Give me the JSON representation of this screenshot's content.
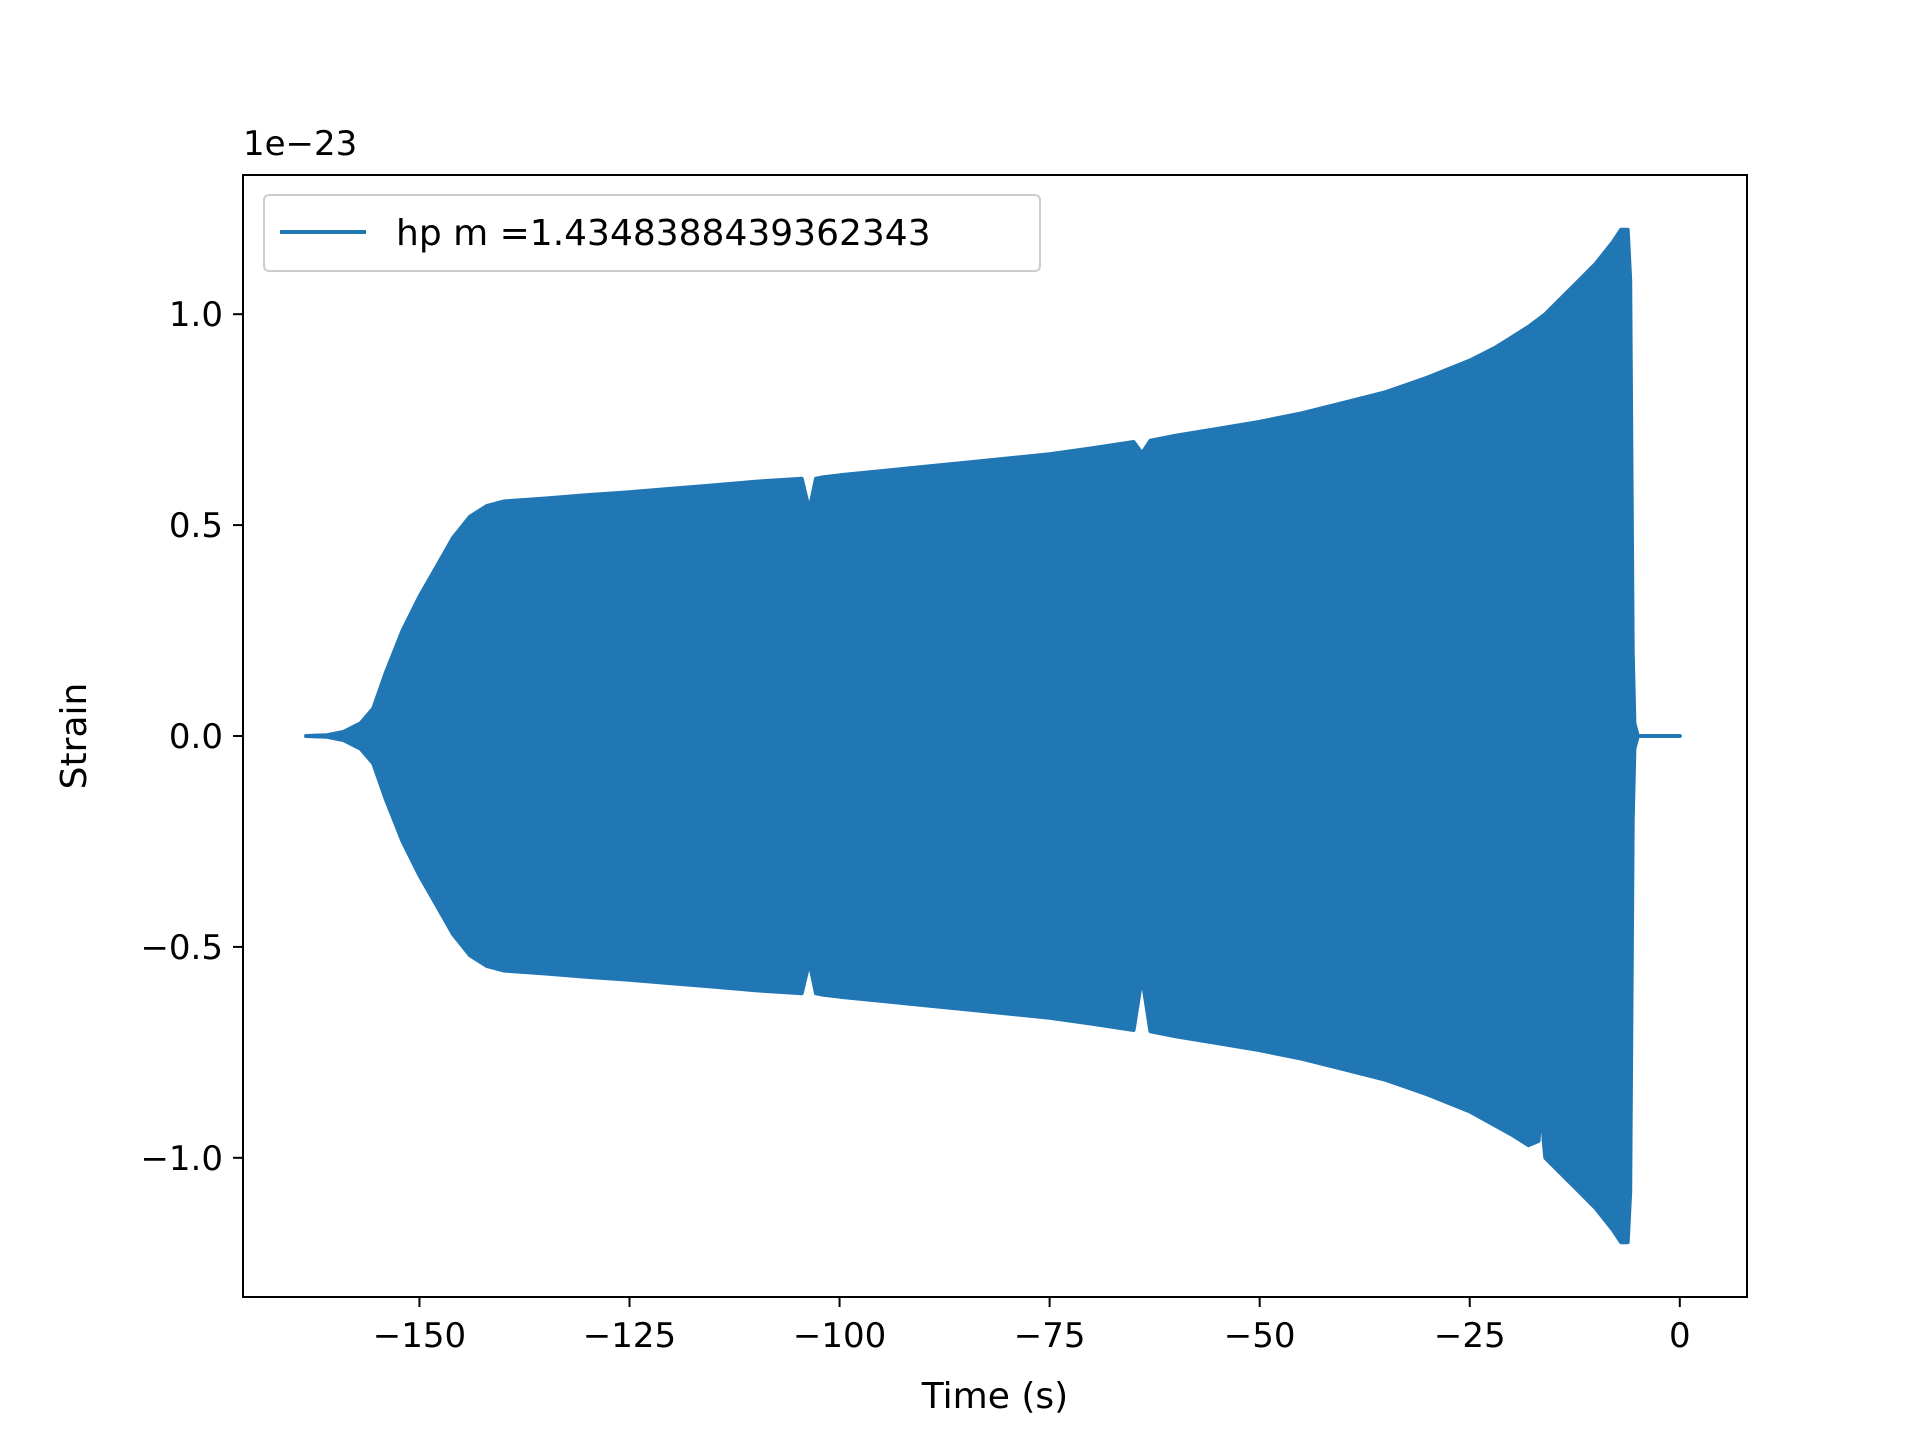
{
  "chart_data": {
    "type": "area",
    "xlabel": "Time (s)",
    "ylabel": "Strain",
    "offset_label": "1e−23",
    "xlim": [
      -171,
      8
    ],
    "ylim": [
      -1.33,
      1.33
    ],
    "xticks": [
      -150,
      -125,
      -100,
      -75,
      -50,
      -25,
      0
    ],
    "xtick_labels": [
      "−150",
      "−125",
      "−100",
      "−75",
      "−50",
      "−25",
      "0"
    ],
    "yticks": [
      -1.0,
      -0.5,
      0.0,
      0.5,
      1.0
    ],
    "ytick_labels": [
      "−1.0",
      "−0.5",
      "0.0",
      "0.5",
      "1.0"
    ],
    "legend_position": "upper-left",
    "grid": false,
    "color": "#2077b4",
    "series": [
      {
        "name": "hp m =1.4348388439362343",
        "upper_envelope": {
          "x": [
            -163.5,
            -161,
            -159,
            -157,
            -155.5,
            -154,
            -152,
            -150,
            -148,
            -146,
            -144,
            -142,
            -140,
            -135,
            -130,
            -125,
            -120,
            -115,
            -110,
            -104.5,
            -103.6,
            -102.8,
            -102,
            -100,
            -95,
            -90,
            -85,
            -80,
            -75,
            -70,
            -65,
            -64,
            -63,
            -60,
            -55,
            -50,
            -45,
            -40,
            -35,
            -30,
            -25,
            -22,
            -20,
            -18,
            -16,
            -14,
            -12,
            -10,
            -8,
            -7,
            -6.2,
            -5.9,
            -5.6,
            -5.4,
            -5.0,
            0
          ],
          "y": [
            0.0,
            0.002,
            0.01,
            0.03,
            0.065,
            0.15,
            0.25,
            0.33,
            0.4,
            0.47,
            0.52,
            0.545,
            0.556,
            0.563,
            0.571,
            0.578,
            0.586,
            0.594,
            0.603,
            0.61,
            0.535,
            0.61,
            0.613,
            0.618,
            0.628,
            0.638,
            0.648,
            0.658,
            0.668,
            0.682,
            0.697,
            0.67,
            0.7,
            0.712,
            0.728,
            0.745,
            0.765,
            0.79,
            0.815,
            0.85,
            0.89,
            0.92,
            0.945,
            0.97,
            1.0,
            1.04,
            1.08,
            1.12,
            1.17,
            1.2,
            1.2,
            1.08,
            0.2,
            0.03,
            0.0,
            0.0
          ]
        },
        "lower_envelope": {
          "x": [
            -163.5,
            -161,
            -159,
            -157,
            -155.5,
            -154,
            -152,
            -150,
            -148,
            -146,
            -144,
            -142,
            -140,
            -135,
            -130,
            -125,
            -120,
            -115,
            -110,
            -104.5,
            -103.6,
            -102.8,
            -102,
            -100,
            -95,
            -90,
            -85,
            -80,
            -75,
            -70,
            -65,
            -64,
            -63,
            -60,
            -55,
            -50,
            -45,
            -40,
            -35,
            -30,
            -25,
            -20,
            -18,
            -16.8,
            -16.5,
            -16.2,
            -16,
            -14,
            -12,
            -10,
            -8,
            -7,
            -6.2,
            -5.9,
            -5.6,
            -5.4,
            -5.0,
            0
          ],
          "y": [
            0.0,
            -0.002,
            -0.01,
            -0.03,
            -0.065,
            -0.15,
            -0.25,
            -0.33,
            -0.4,
            -0.47,
            -0.52,
            -0.545,
            -0.556,
            -0.563,
            -0.571,
            -0.578,
            -0.586,
            -0.594,
            -0.603,
            -0.61,
            -0.535,
            -0.61,
            -0.613,
            -0.618,
            -0.628,
            -0.638,
            -0.648,
            -0.658,
            -0.668,
            -0.682,
            -0.697,
            -0.57,
            -0.7,
            -0.712,
            -0.728,
            -0.745,
            -0.765,
            -0.79,
            -0.815,
            -0.85,
            -0.89,
            -0.945,
            -0.97,
            -0.96,
            -0.86,
            -0.96,
            -1.0,
            -1.04,
            -1.08,
            -1.12,
            -1.17,
            -1.2,
            -1.2,
            -1.08,
            -0.2,
            -0.03,
            0.0,
            0.0
          ]
        }
      }
    ]
  }
}
